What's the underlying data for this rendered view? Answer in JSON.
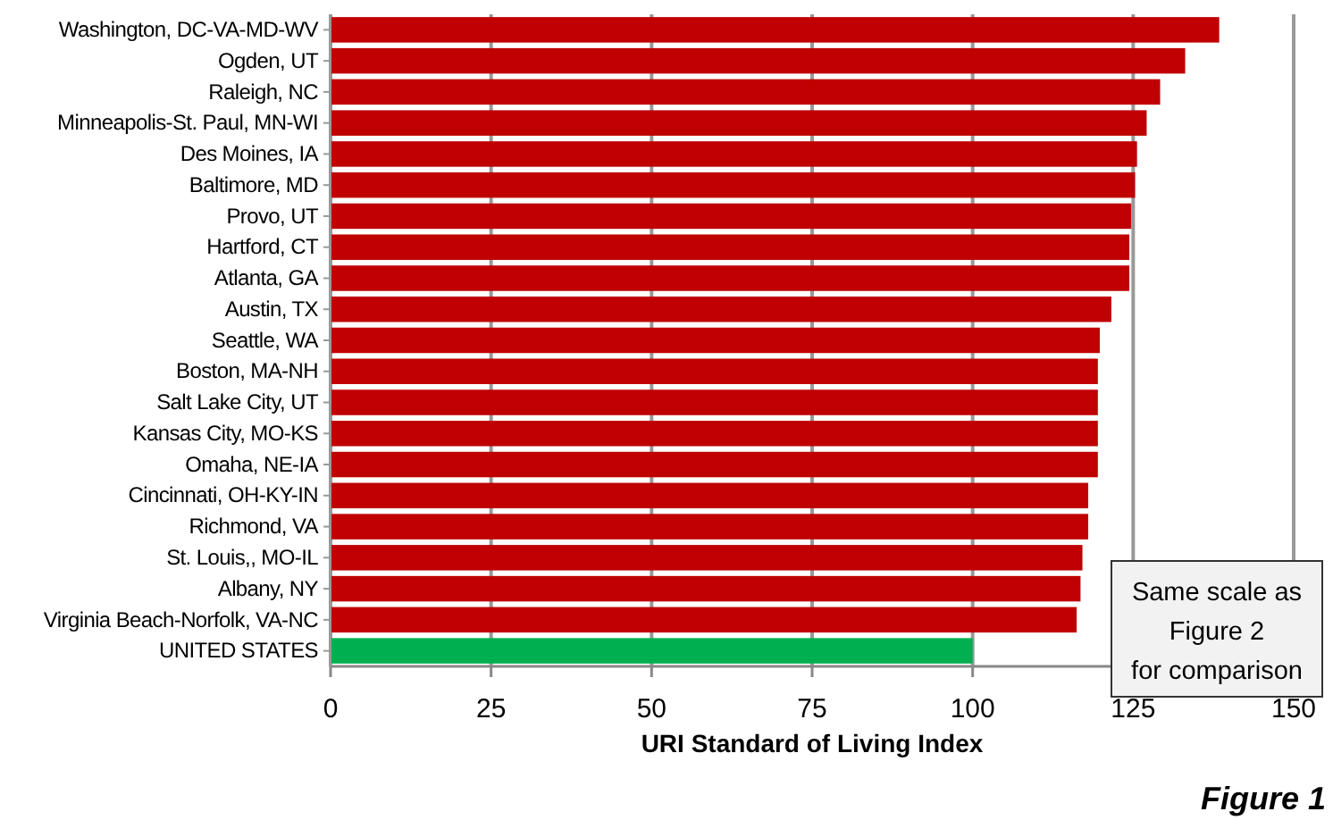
{
  "chart_data": {
    "type": "bar",
    "orientation": "horizontal",
    "categories": [
      "Washington, DC-VA-MD-WV",
      "Ogden, UT",
      "Raleigh, NC",
      "Minneapolis-St. Paul, MN-WI",
      "Des Moines, IA",
      "Baltimore, MD",
      "Provo, UT",
      "Hartford, CT",
      "Atlanta, GA",
      "Austin, TX",
      "Seattle, WA",
      "Boston, MA-NH",
      "Salt Lake City, UT",
      "Kansas City, MO-KS",
      "Omaha, NE-IA",
      "Cincinnati, OH-KY-IN",
      "Richmond, VA",
      "St. Louis,, MO-IL",
      "Albany, NY",
      "Virginia Beach-Norfolk, VA-NC",
      "UNITED STATES"
    ],
    "values": [
      138.4,
      133.1,
      129.2,
      127.1,
      125.6,
      125.3,
      124.7,
      124.4,
      124.4,
      121.6,
      119.8,
      119.5,
      119.5,
      119.5,
      119.5,
      118.0,
      118.0,
      117.1,
      116.8,
      116.2,
      100
    ],
    "colors": [
      "#c00000",
      "#c00000",
      "#c00000",
      "#c00000",
      "#c00000",
      "#c00000",
      "#c00000",
      "#c00000",
      "#c00000",
      "#c00000",
      "#c00000",
      "#c00000",
      "#c00000",
      "#c00000",
      "#c00000",
      "#c00000",
      "#c00000",
      "#c00000",
      "#c00000",
      "#c00000",
      "#00b050"
    ],
    "xlim": [
      0,
      150
    ],
    "xticks": [
      0,
      25,
      50,
      75,
      100,
      125,
      150
    ],
    "grid": "x",
    "xlabel": "URI Standard of Living Index",
    "annotations": [
      "Same scale as Figure 2 for comparison",
      "Figure 1"
    ]
  }
}
